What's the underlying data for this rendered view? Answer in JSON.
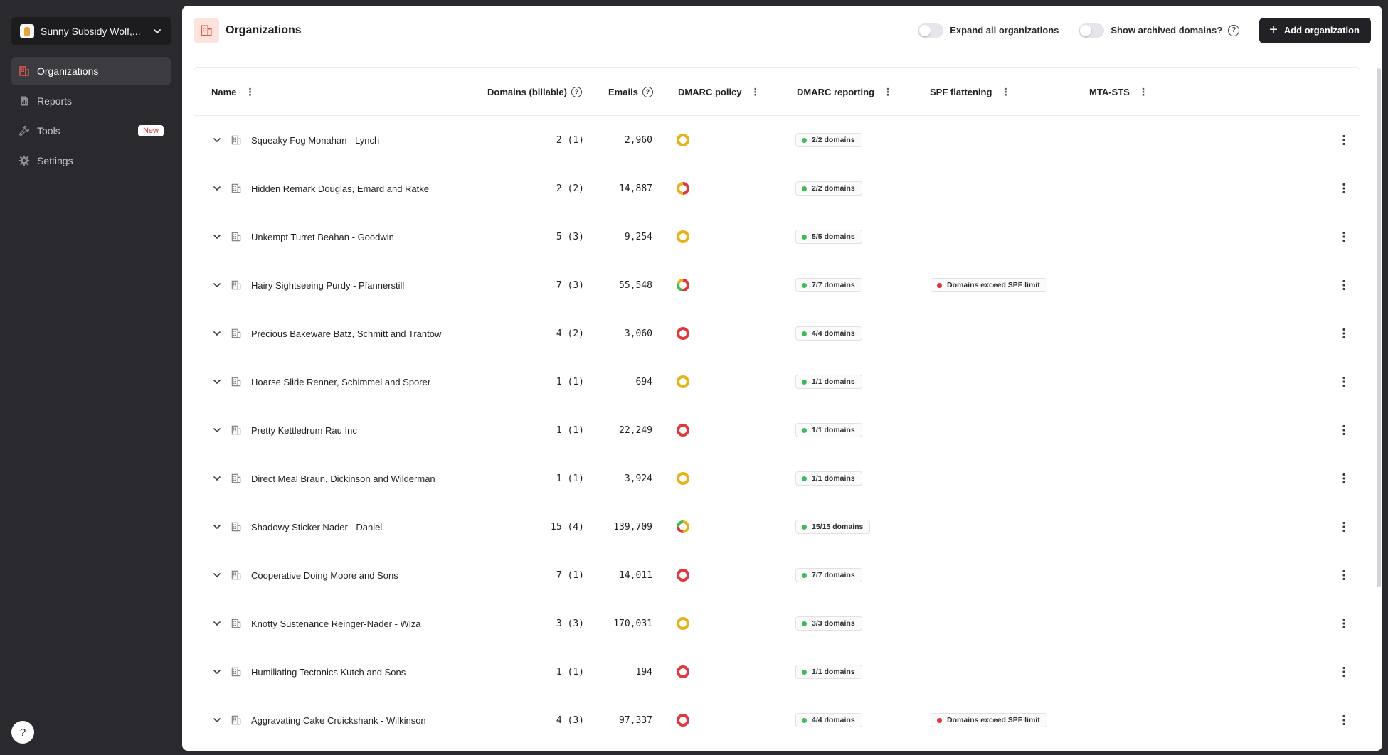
{
  "sidebar": {
    "org_switcher": {
      "name": "Sunny Subsidy Wolf,..."
    },
    "items": [
      {
        "label": "Organizations",
        "icon": "building-icon",
        "active": true
      },
      {
        "label": "Reports",
        "icon": "report-icon"
      },
      {
        "label": "Tools",
        "icon": "wrench-icon",
        "badge": "New"
      },
      {
        "label": "Settings",
        "icon": "gear-icon"
      }
    ],
    "help_label": "?"
  },
  "header": {
    "title": "Organizations",
    "expand_label": "Expand all organizations",
    "archived_label": "Show archived domains?",
    "add_button": "Add organization"
  },
  "table": {
    "columns": {
      "name": "Name",
      "domains": "Domains (billable)",
      "emails": "Emails",
      "dmarc_policy": "DMARC policy",
      "dmarc_reporting": "DMARC reporting",
      "spf": "SPF flattening",
      "mta": "MTA-STS"
    },
    "rows": [
      {
        "name": "Squeaky Fog Monahan - Lynch",
        "domains": "2 (1)",
        "emails": "2,960",
        "policy": "yellow",
        "reporting": "2/2 domains",
        "spf": ""
      },
      {
        "name": "Hidden Remark Douglas, Emard and Ratke",
        "domains": "2 (2)",
        "emails": "14,887",
        "policy": "half",
        "reporting": "2/2 domains",
        "spf": ""
      },
      {
        "name": "Unkempt Turret Beahan - Goodwin",
        "domains": "5 (3)",
        "emails": "9,254",
        "policy": "yellow",
        "reporting": "5/5 domains",
        "spf": ""
      },
      {
        "name": "Hairy Sightseeing Purdy - Pfannerstill",
        "domains": "7 (3)",
        "emails": "55,548",
        "policy": "mix3",
        "reporting": "7/7 domains",
        "spf": "Domains exceed SPF limit"
      },
      {
        "name": "Precious Bakeware Batz, Schmitt and Trantow",
        "domains": "4 (2)",
        "emails": "3,060",
        "policy": "red",
        "reporting": "4/4 domains",
        "spf": ""
      },
      {
        "name": "Hoarse Slide Renner, Schimmel and Sporer",
        "domains": "1 (1)",
        "emails": "694",
        "policy": "yellow",
        "reporting": "1/1 domains",
        "spf": ""
      },
      {
        "name": "Pretty Kettledrum Rau Inc",
        "domains": "1 (1)",
        "emails": "22,249",
        "policy": "red",
        "reporting": "1/1 domains",
        "spf": ""
      },
      {
        "name": "Direct Meal Braun, Dickinson and Wilderman",
        "domains": "1 (1)",
        "emails": "3,924",
        "policy": "yellow",
        "reporting": "1/1 domains",
        "spf": ""
      },
      {
        "name": "Shadowy Sticker Nader - Daniel",
        "domains": "15 (4)",
        "emails": "139,709",
        "policy": "mix4",
        "reporting": "15/15 domains",
        "spf": ""
      },
      {
        "name": "Cooperative Doing Moore and Sons",
        "domains": "7 (1)",
        "emails": "14,011",
        "policy": "red",
        "reporting": "7/7 domains",
        "spf": ""
      },
      {
        "name": "Knotty Sustenance Reinger-Nader - Wiza",
        "domains": "3 (3)",
        "emails": "170,031",
        "policy": "yellow",
        "reporting": "3/3 domains",
        "spf": ""
      },
      {
        "name": "Humiliating Tectonics Kutch and Sons",
        "domains": "1 (1)",
        "emails": "194",
        "policy": "red",
        "reporting": "1/1 domains",
        "spf": ""
      },
      {
        "name": "Aggravating Cake Cruickshank - Wilkinson",
        "domains": "4 (3)",
        "emails": "97,337",
        "policy": "red",
        "reporting": "4/4 domains",
        "spf": "Domains exceed SPF limit"
      }
    ]
  },
  "colors": {
    "yellow": "#e8b21a",
    "red": "#e0383e",
    "green": "#3fba5a",
    "dark": "#222226"
  }
}
